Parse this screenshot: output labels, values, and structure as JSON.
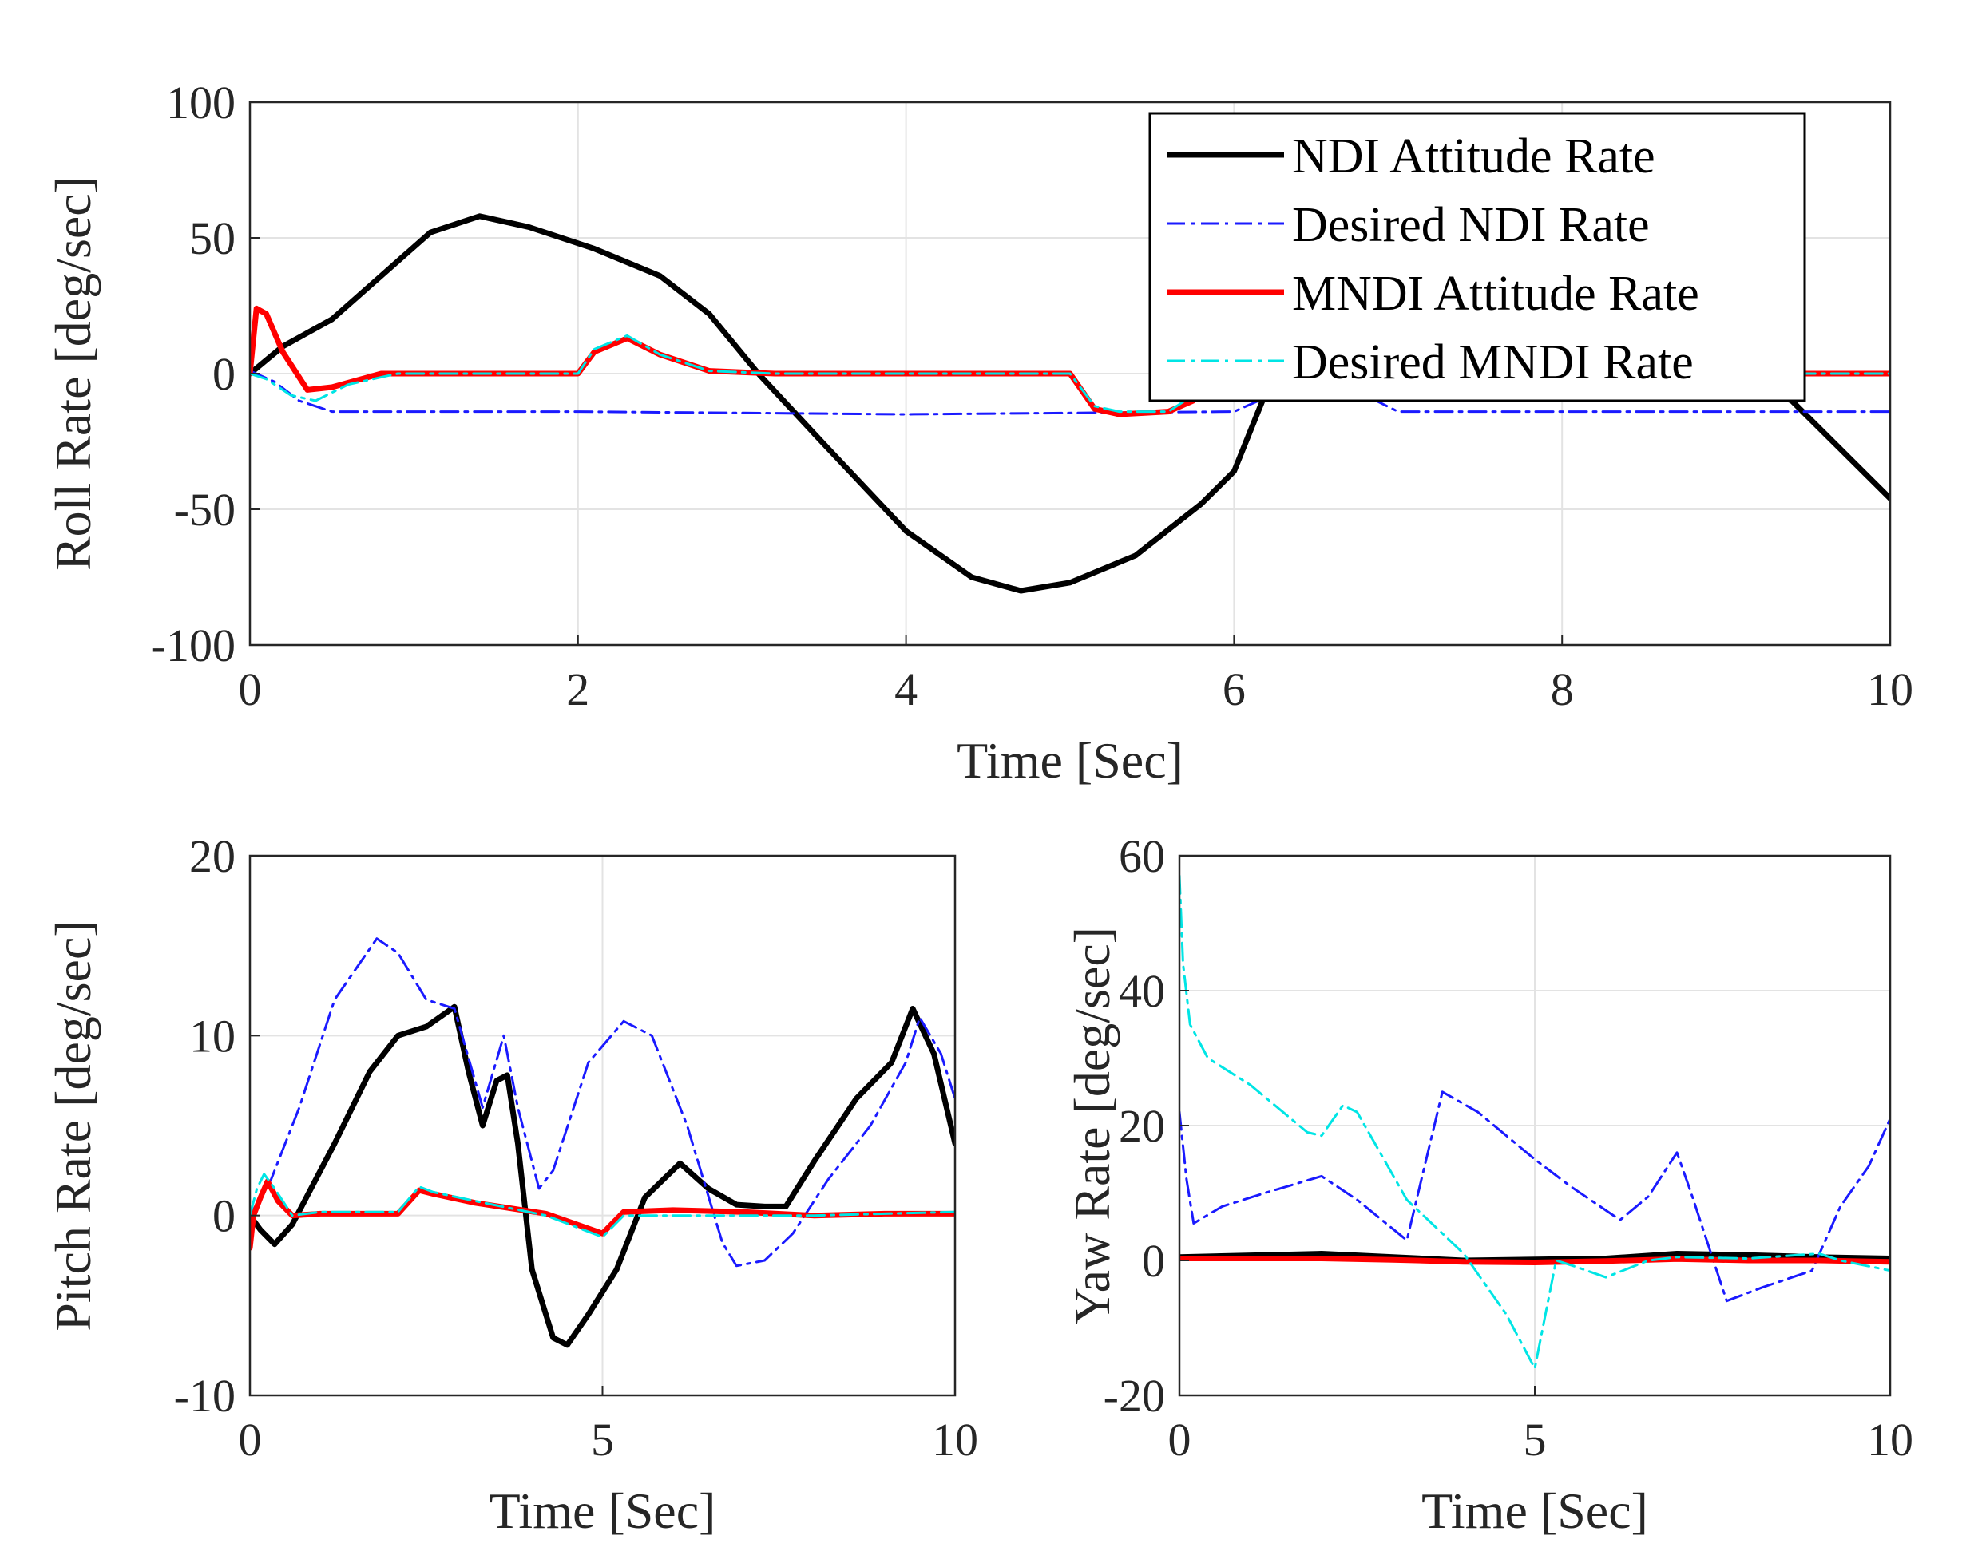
{
  "chart_data": [
    {
      "type": "line",
      "xlabel": "Time  [Sec]",
      "ylabel": "Roll Rate [deg/sec]",
      "xlim": [
        0,
        10
      ],
      "ylim": [
        -100,
        100
      ],
      "xticks": [
        0,
        2,
        4,
        6,
        8,
        10
      ],
      "yticks": [
        -100,
        -50,
        0,
        50,
        100
      ],
      "grid": true,
      "legend_placement": "top-right",
      "series": [
        {
          "name": "NDI Attitude Rate",
          "color": "#000000",
          "style": "solid-thick",
          "points": [
            [
              0,
              0
            ],
            [
              0.2,
              10
            ],
            [
              0.5,
              20
            ],
            [
              0.8,
              36
            ],
            [
              1.1,
              52
            ],
            [
              1.4,
              58
            ],
            [
              1.7,
              54
            ],
            [
              2.1,
              46
            ],
            [
              2.5,
              36
            ],
            [
              2.8,
              22
            ],
            [
              3.1,
              0
            ],
            [
              3.5,
              -26
            ],
            [
              4.0,
              -58
            ],
            [
              4.4,
              -75
            ],
            [
              4.7,
              -80
            ],
            [
              5.0,
              -77
            ],
            [
              5.4,
              -67
            ],
            [
              5.8,
              -48
            ],
            [
              6.0,
              -36
            ],
            [
              6.2,
              -6
            ],
            [
              6.3,
              20
            ],
            [
              6.5,
              30
            ],
            [
              6.8,
              24
            ],
            [
              7.2,
              18
            ],
            [
              7.6,
              10
            ],
            [
              8.0,
              5
            ],
            [
              8.5,
              3
            ],
            [
              9.0,
              0
            ],
            [
              9.4,
              -10
            ],
            [
              9.7,
              -28
            ],
            [
              10,
              -46
            ]
          ]
        },
        {
          "name": "Desired NDI Rate",
          "color": "#1a1aff",
          "style": "dash-dot",
          "points": [
            [
              0,
              1
            ],
            [
              0.15,
              -3
            ],
            [
              0.3,
              -10
            ],
            [
              0.5,
              -14
            ],
            [
              1,
              -14
            ],
            [
              2,
              -14
            ],
            [
              4,
              -15
            ],
            [
              6,
              -14
            ],
            [
              6.3,
              -6
            ],
            [
              6.6,
              -3
            ],
            [
              6.8,
              -8
            ],
            [
              7,
              -14
            ],
            [
              8,
              -14
            ],
            [
              9,
              -14
            ],
            [
              10,
              -14
            ]
          ]
        },
        {
          "name": "MNDI Attitude Rate",
          "color": "#ff0000",
          "style": "solid-thick",
          "points": [
            [
              0,
              0
            ],
            [
              0.04,
              24
            ],
            [
              0.1,
              22
            ],
            [
              0.2,
              8
            ],
            [
              0.35,
              -6
            ],
            [
              0.5,
              -5
            ],
            [
              0.8,
              0
            ],
            [
              1.2,
              0
            ],
            [
              2.0,
              0
            ],
            [
              2.1,
              8
            ],
            [
              2.3,
              13
            ],
            [
              2.5,
              7
            ],
            [
              2.8,
              1
            ],
            [
              3.2,
              0
            ],
            [
              4.0,
              0
            ],
            [
              5.0,
              0
            ],
            [
              5.15,
              -13
            ],
            [
              5.3,
              -15
            ],
            [
              5.6,
              -14
            ],
            [
              5.75,
              -10
            ],
            [
              5.9,
              -2
            ],
            [
              6.1,
              0
            ],
            [
              7,
              0
            ],
            [
              8,
              0
            ],
            [
              9,
              0
            ],
            [
              10,
              0
            ]
          ]
        },
        {
          "name": "Desired MNDI Rate",
          "color": "#00e5e5",
          "style": "dash-dot",
          "points": [
            [
              0,
              0
            ],
            [
              0.1,
              -2
            ],
            [
              0.25,
              -8
            ],
            [
              0.4,
              -10
            ],
            [
              0.6,
              -4
            ],
            [
              0.9,
              0
            ],
            [
              2.0,
              0
            ],
            [
              2.1,
              9
            ],
            [
              2.3,
              14
            ],
            [
              2.5,
              7
            ],
            [
              2.8,
              1
            ],
            [
              3.2,
              0
            ],
            [
              4,
              0
            ],
            [
              5,
              0
            ],
            [
              5.15,
              -12
            ],
            [
              5.3,
              -14
            ],
            [
              5.6,
              -14
            ],
            [
              5.8,
              -6
            ],
            [
              6,
              0
            ],
            [
              7,
              0
            ],
            [
              8,
              0
            ],
            [
              9,
              0
            ],
            [
              10,
              0
            ]
          ]
        }
      ]
    },
    {
      "type": "line",
      "xlabel": "Time  [Sec]",
      "ylabel": "Pitch Rate [deg/sec]",
      "xlim": [
        0,
        10
      ],
      "ylim": [
        -10,
        20
      ],
      "xticks": [
        0,
        5,
        10
      ],
      "yticks": [
        -10,
        0,
        10,
        20
      ],
      "grid": true,
      "series": [
        {
          "color": "#000000",
          "style": "solid-thick",
          "points": [
            [
              0,
              0
            ],
            [
              0.15,
              -0.8
            ],
            [
              0.35,
              -1.6
            ],
            [
              0.6,
              -0.5
            ],
            [
              1.2,
              4
            ],
            [
              1.7,
              8
            ],
            [
              2.1,
              10
            ],
            [
              2.5,
              10.5
            ],
            [
              2.9,
              11.6
            ],
            [
              3.1,
              8
            ],
            [
              3.3,
              5
            ],
            [
              3.5,
              7.5
            ],
            [
              3.65,
              7.8
            ],
            [
              3.8,
              4
            ],
            [
              4.0,
              -3
            ],
            [
              4.3,
              -6.8
            ],
            [
              4.5,
              -7.2
            ],
            [
              4.8,
              -5.5
            ],
            [
              5.2,
              -3
            ],
            [
              5.6,
              1
            ],
            [
              6.1,
              2.9
            ],
            [
              6.5,
              1.5
            ],
            [
              6.9,
              0.6
            ],
            [
              7.3,
              0.5
            ],
            [
              7.6,
              0.5
            ],
            [
              8.0,
              3
            ],
            [
              8.6,
              6.5
            ],
            [
              9.1,
              8.5
            ],
            [
              9.4,
              11.5
            ],
            [
              9.7,
              9
            ],
            [
              10,
              4
            ]
          ]
        },
        {
          "color": "#1a1aff",
          "style": "dash-dot",
          "points": [
            [
              0,
              0
            ],
            [
              0.3,
              2
            ],
            [
              0.7,
              6
            ],
            [
              1.2,
              12
            ],
            [
              1.8,
              15.4
            ],
            [
              2.1,
              14.6
            ],
            [
              2.5,
              12
            ],
            [
              2.9,
              11.5
            ],
            [
              3.3,
              6
            ],
            [
              3.6,
              10
            ],
            [
              3.8,
              6
            ],
            [
              4.1,
              1.5
            ],
            [
              4.3,
              2.5
            ],
            [
              4.8,
              8.5
            ],
            [
              5.3,
              10.8
            ],
            [
              5.7,
              10
            ],
            [
              6.2,
              5
            ],
            [
              6.7,
              -1.5
            ],
            [
              6.9,
              -2.8
            ],
            [
              7.3,
              -2.5
            ],
            [
              7.7,
              -1
            ],
            [
              8.2,
              2
            ],
            [
              8.8,
              5
            ],
            [
              9.3,
              8.5
            ],
            [
              9.5,
              11
            ],
            [
              9.8,
              9
            ],
            [
              10,
              6.5
            ]
          ]
        },
        {
          "color": "#ff0000",
          "style": "solid-thick",
          "points": [
            [
              0,
              -1.8
            ],
            [
              0.05,
              0
            ],
            [
              0.15,
              1
            ],
            [
              0.25,
              1.9
            ],
            [
              0.4,
              0.8
            ],
            [
              0.6,
              0
            ],
            [
              1,
              0.1
            ],
            [
              2.1,
              0.1
            ],
            [
              2.4,
              1.4
            ],
            [
              2.6,
              1.2
            ],
            [
              3.2,
              0.7
            ],
            [
              4.2,
              0.1
            ],
            [
              5.0,
              -1
            ],
            [
              5.3,
              0.2
            ],
            [
              6,
              0.3
            ],
            [
              7,
              0.2
            ],
            [
              8,
              0
            ],
            [
              9,
              0.1
            ],
            [
              10,
              0.1
            ]
          ]
        },
        {
          "color": "#00e5e5",
          "style": "dash-dot",
          "points": [
            [
              0,
              0
            ],
            [
              0.1,
              1.5
            ],
            [
              0.2,
              2.3
            ],
            [
              0.35,
              1.5
            ],
            [
              0.6,
              0
            ],
            [
              1,
              0.2
            ],
            [
              2.1,
              0.2
            ],
            [
              2.4,
              1.6
            ],
            [
              2.6,
              1.3
            ],
            [
              3.2,
              0.8
            ],
            [
              4.2,
              0
            ],
            [
              5.0,
              -1.2
            ],
            [
              5.3,
              0
            ],
            [
              6,
              0
            ],
            [
              7,
              0
            ],
            [
              8,
              0
            ],
            [
              9,
              0.1
            ],
            [
              10,
              0.2
            ]
          ]
        }
      ]
    },
    {
      "type": "line",
      "xlabel": "Time  [Sec]",
      "ylabel": "Yaw Rate [deg/sec]",
      "xlim": [
        0,
        10
      ],
      "ylim": [
        -20,
        60
      ],
      "xticks": [
        0,
        5,
        10
      ],
      "yticks": [
        -20,
        0,
        20,
        40,
        60
      ],
      "grid": true,
      "series": [
        {
          "color": "#000000",
          "style": "solid-thick",
          "points": [
            [
              0,
              0.5
            ],
            [
              2,
              1
            ],
            [
              4,
              0
            ],
            [
              6,
              0.3
            ],
            [
              7,
              1
            ],
            [
              8,
              0.8
            ],
            [
              9,
              0.5
            ],
            [
              10,
              0.3
            ]
          ]
        },
        {
          "color": "#1a1aff",
          "style": "dash-dot",
          "points": [
            [
              0,
              22
            ],
            [
              0.1,
              12
            ],
            [
              0.2,
              5.5
            ],
            [
              0.6,
              8
            ],
            [
              1.2,
              10
            ],
            [
              2.0,
              12.5
            ],
            [
              2.5,
              9
            ],
            [
              3.2,
              3
            ],
            [
              3.7,
              25
            ],
            [
              4.2,
              22
            ],
            [
              5,
              15
            ],
            [
              5.5,
              11
            ],
            [
              6.2,
              6
            ],
            [
              6.6,
              9.5
            ],
            [
              7.0,
              16
            ],
            [
              7.2,
              10
            ],
            [
              7.7,
              -6
            ],
            [
              8.2,
              -4
            ],
            [
              8.9,
              -1.5
            ],
            [
              9.3,
              8
            ],
            [
              9.7,
              14
            ],
            [
              10,
              21
            ]
          ]
        },
        {
          "color": "#ff0000",
          "style": "solid-thick",
          "points": [
            [
              0,
              0.3
            ],
            [
              1,
              0.3
            ],
            [
              2,
              0.3
            ],
            [
              3,
              0.1
            ],
            [
              4,
              -0.2
            ],
            [
              5,
              -0.3
            ],
            [
              6,
              -0.1
            ],
            [
              7,
              0.2
            ],
            [
              8,
              0
            ],
            [
              9,
              0
            ],
            [
              10,
              -0.2
            ]
          ]
        },
        {
          "color": "#00e5e5",
          "style": "dash-dot",
          "points": [
            [
              0,
              57
            ],
            [
              0.05,
              44
            ],
            [
              0.15,
              35
            ],
            [
              0.4,
              30
            ],
            [
              1,
              26
            ],
            [
              1.8,
              19
            ],
            [
              2.0,
              18.5
            ],
            [
              2.3,
              23
            ],
            [
              2.5,
              22
            ],
            [
              3.2,
              9
            ],
            [
              4,
              1
            ],
            [
              4.6,
              -8
            ],
            [
              5.0,
              -16
            ],
            [
              5.3,
              0
            ],
            [
              5.6,
              -1
            ],
            [
              6.0,
              -2.5
            ],
            [
              6.6,
              0
            ],
            [
              7,
              0.5
            ],
            [
              8,
              0.3
            ],
            [
              9,
              1
            ],
            [
              9.3,
              0
            ],
            [
              10,
              -1.5
            ]
          ]
        }
      ]
    }
  ]
}
